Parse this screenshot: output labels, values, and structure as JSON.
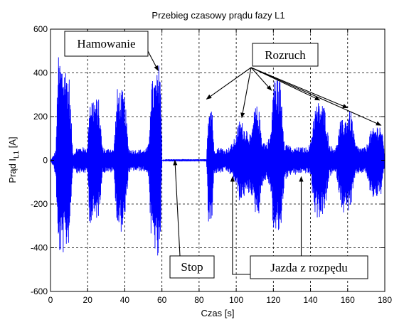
{
  "chart_data": {
    "type": "line",
    "title": "Przebieg czasowy prądu fazy L1",
    "xlabel": "Czas [s]",
    "ylabel": "Prąd I",
    "ylabel_subscript": "L1",
    "ylabel_unit": " [A]",
    "xlim": [
      0,
      180
    ],
    "ylim": [
      -600,
      600
    ],
    "x_ticks": [
      0,
      20,
      40,
      60,
      80,
      100,
      120,
      140,
      160,
      180
    ],
    "y_ticks": [
      600,
      400,
      200,
      0,
      -200,
      -400,
      -600
    ],
    "grid": true,
    "series_color": "#0000ff",
    "envelope": {
      "x": [
        0,
        2,
        3,
        4,
        6,
        8,
        10,
        12,
        13,
        14,
        16,
        18,
        20,
        21,
        22,
        24,
        26,
        28,
        29,
        30,
        32,
        34,
        36,
        38,
        40,
        42,
        44,
        46,
        48,
        50,
        52,
        53,
        54,
        56,
        57,
        58,
        59,
        60,
        62,
        64,
        66,
        68,
        70,
        72,
        74,
        76,
        78,
        80,
        82,
        84,
        85,
        86,
        87,
        88,
        90,
        92,
        94,
        96,
        98,
        100,
        102,
        104,
        106,
        108,
        110,
        112,
        114,
        116,
        118,
        119,
        120,
        122,
        124,
        126,
        128,
        130,
        132,
        134,
        136,
        138,
        140,
        142,
        144,
        146,
        148,
        150,
        152,
        154,
        156,
        158,
        160,
        162,
        164,
        166,
        168,
        170,
        172,
        174,
        176,
        178,
        180
      ],
      "upper": [
        0,
        30,
        60,
        480,
        460,
        440,
        400,
        40,
        40,
        60,
        60,
        60,
        60,
        300,
        300,
        290,
        280,
        60,
        60,
        50,
        60,
        50,
        330,
        330,
        300,
        60,
        50,
        50,
        50,
        50,
        60,
        80,
        360,
        380,
        390,
        410,
        520,
        0,
        5,
        5,
        5,
        5,
        5,
        5,
        5,
        5,
        5,
        5,
        5,
        5,
        260,
        280,
        280,
        50,
        60,
        60,
        50,
        60,
        80,
        120,
        200,
        160,
        150,
        110,
        250,
        250,
        100,
        80,
        110,
        160,
        400,
        380,
        370,
        80,
        80,
        50,
        60,
        60,
        60,
        60,
        80,
        240,
        270,
        270,
        240,
        80,
        60,
        70,
        180,
        190,
        220,
        230,
        80,
        60,
        60,
        60,
        130,
        150,
        165,
        170,
        30
      ],
      "lower": [
        0,
        -40,
        -100,
        -430,
        -440,
        -420,
        -380,
        -40,
        -40,
        -60,
        -60,
        -60,
        -60,
        -280,
        -300,
        -280,
        -260,
        -60,
        -60,
        -50,
        -60,
        -50,
        -320,
        -330,
        -300,
        -60,
        -50,
        -50,
        -50,
        -50,
        -60,
        -80,
        -360,
        -400,
        -460,
        -480,
        -510,
        0,
        -5,
        -5,
        -5,
        -5,
        -5,
        -5,
        -5,
        -5,
        -5,
        -5,
        -5,
        -5,
        -300,
        -310,
        -310,
        -60,
        -60,
        -60,
        -50,
        -60,
        -80,
        -120,
        -200,
        -170,
        -160,
        -150,
        -240,
        -260,
        -120,
        -90,
        -120,
        -180,
        -340,
        -350,
        -330,
        -90,
        -80,
        -60,
        -70,
        -60,
        -60,
        -60,
        -70,
        -240,
        -270,
        -260,
        -240,
        -80,
        -60,
        -70,
        -190,
        -250,
        -240,
        -210,
        -80,
        -60,
        -60,
        -60,
        -150,
        -180,
        -170,
        -160,
        -30
      ]
    },
    "annotations": [
      {
        "text": "Hamowanie",
        "box": [
          10,
          556
        ],
        "target": [
          [
            58,
            410
          ]
        ]
      },
      {
        "text": "Rozruch",
        "box": [
          110,
          556
        ],
        "target": [
          [
            84,
            280
          ],
          [
            103,
            195
          ],
          [
            119,
            320
          ],
          [
            145,
            275
          ],
          [
            160,
            240
          ],
          [
            178,
            160
          ]
        ]
      },
      {
        "text": "Stop",
        "box": [
          73,
          -490
        ],
        "target": [
          [
            67,
            0
          ]
        ]
      },
      {
        "text": "Jazda z rozpędu",
        "box": [
          112,
          -490
        ],
        "target": [
          [
            98,
            -75
          ],
          [
            135,
            -75
          ]
        ]
      }
    ]
  }
}
